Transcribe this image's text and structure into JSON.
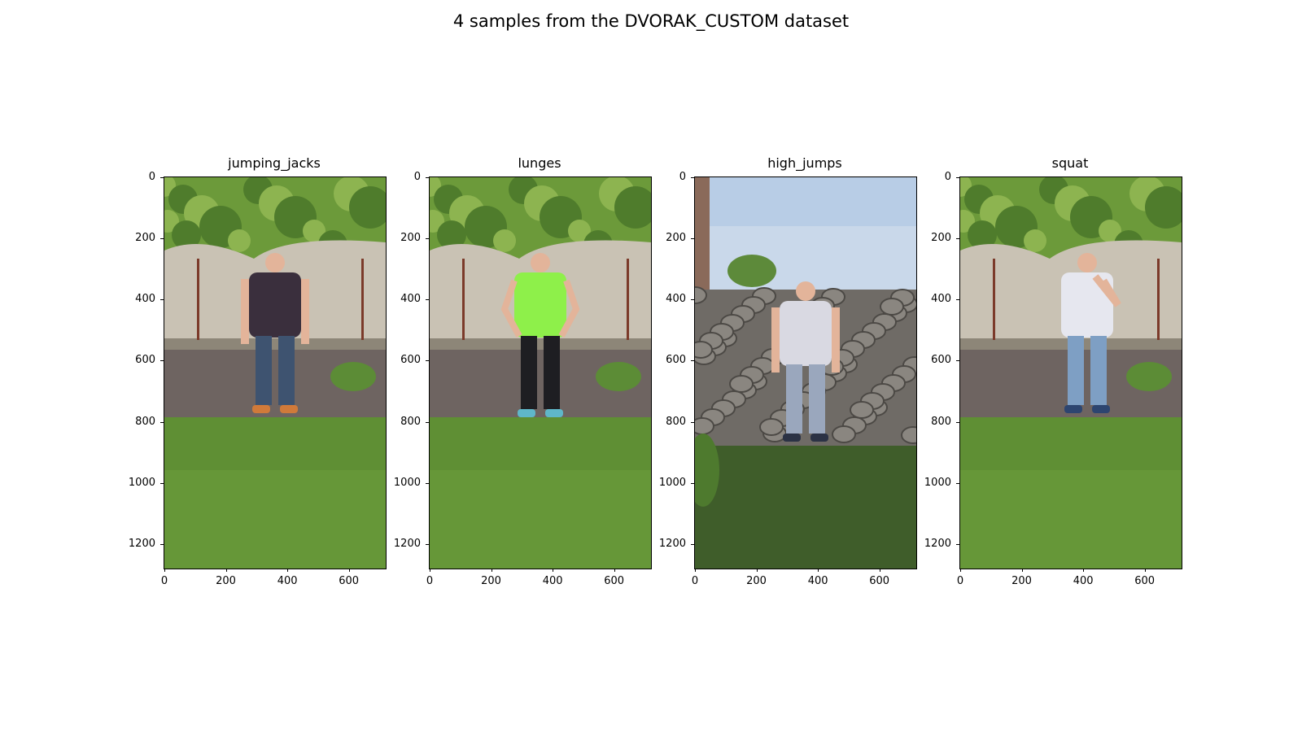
{
  "figure": {
    "title": "4 samples from the DVORAK_CUSTOM dataset"
  },
  "panels": [
    {
      "label": "jumping_jacks",
      "scene": "concrete-wall-garden",
      "person": {
        "shirt": "#3a2f3d",
        "pants": "#3e5370",
        "shoes": "#d07a3a",
        "pose": "standing"
      }
    },
    {
      "label": "lunges",
      "scene": "concrete-wall-garden",
      "person": {
        "shirt": "#8ef04a",
        "pants": "#1e1e22",
        "shoes": "#5fb7c9",
        "pose": "hands-on-hips"
      }
    },
    {
      "label": "high_jumps",
      "scene": "stone-wall-sky",
      "person": {
        "shirt": "#d9d9e2",
        "pants": "#9aa7bd",
        "shoes": "#2b3245",
        "pose": "standing"
      }
    },
    {
      "label": "squat",
      "scene": "concrete-wall-garden",
      "person": {
        "shirt": "#e6e7ef",
        "pants": "#7e9fc4",
        "shoes": "#2d4570",
        "pose": "side-arms-up"
      }
    }
  ],
  "axes": {
    "y_ticks": [
      "0",
      "200",
      "400",
      "600",
      "800",
      "1000",
      "1200"
    ],
    "x_ticks": [
      "0",
      "200",
      "400",
      "600"
    ],
    "y_range": [
      0,
      1280
    ],
    "x_range": [
      0,
      720
    ]
  },
  "colors": {
    "grass": "#5f8f34",
    "trees": "#6c9a3a",
    "concrete": "#c9c2b4",
    "stone": "#6f6b66",
    "sky": "#c9d8ea",
    "soil": "#6e6461"
  }
}
